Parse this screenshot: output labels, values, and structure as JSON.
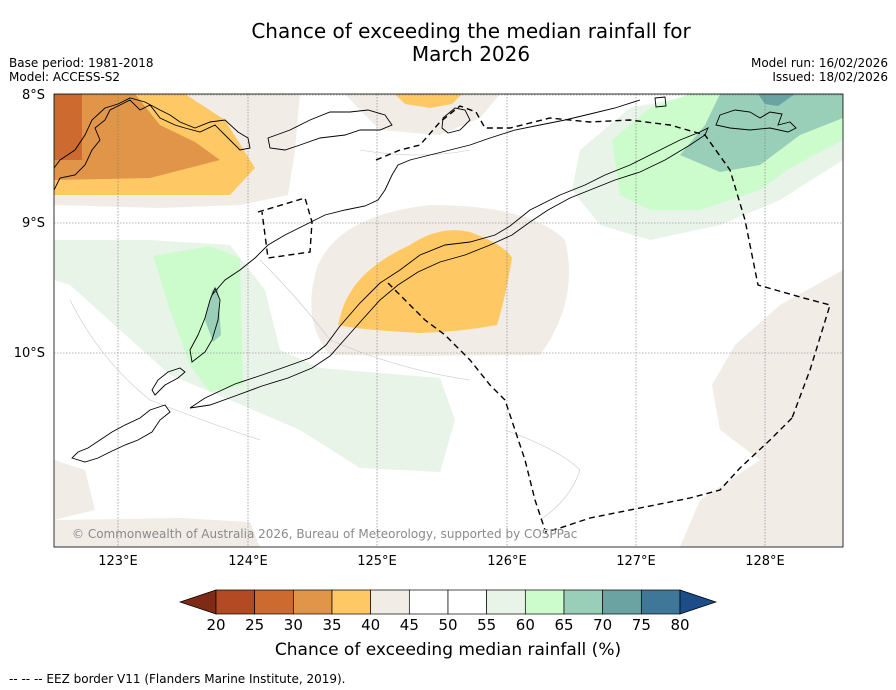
{
  "title": "Chance of exceeding the median rainfall for",
  "subtitle": "March 2026",
  "base_period": "Base period: 1981-2018",
  "model": "Model: ACCESS-S2",
  "model_run": "Model run: 16/02/2026",
  "issued": "Issued: 18/02/2026",
  "lat_labels": [
    "8°S",
    "9°S",
    "10°S"
  ],
  "lon_labels": [
    "123°E",
    "124°E",
    "125°E",
    "126°E",
    "127°E",
    "128°E"
  ],
  "copyright": "© Commonwealth of Australia 2026, Bureau of Meteorology, supported by COSPPac",
  "colorbar": {
    "title": "Chance of exceeding median rainfall (%)",
    "ticks": [
      "20",
      "25",
      "30",
      "35",
      "40",
      "45",
      "50",
      "55",
      "60",
      "65",
      "70",
      "75",
      "80"
    ],
    "colors": [
      "#7f2a16",
      "#b34a24",
      "#cd6a2f",
      "#e09548",
      "#fec965",
      "#f1ede6",
      "#ffffff",
      "#ffffff",
      "#e8f4e8",
      "#ccfccc",
      "#99cfb8",
      "#6ba3a2",
      "#3f7799",
      "#1c4d88"
    ]
  },
  "legend_note": "--  --  -- EEZ border V11 (Flanders Marine Institute, 2019)."
}
